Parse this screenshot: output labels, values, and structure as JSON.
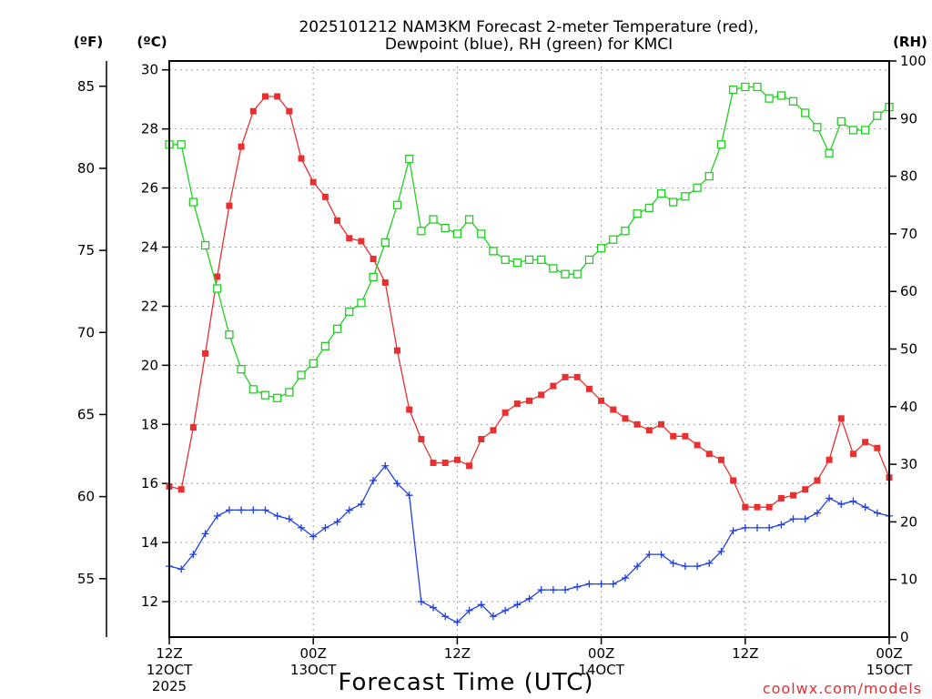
{
  "chart_data": {
    "type": "line",
    "title_line1": "2025101212 NAM3KM Forecast 2-meter Temperature (red),",
    "title_line2": "Dewpoint (blue), RH (green) for KMCI",
    "xlabel": "Forecast Time (UTC)",
    "credit": "coolwx.com/models",
    "units": {
      "fahrenheit": "(ºF)",
      "celsius": "(ºC)",
      "rh": "(RH)"
    },
    "x_range_hours": [
      0,
      60
    ],
    "x_ticks": [
      {
        "hour": 0,
        "line1": "12Z",
        "line2": "12OCT",
        "line3": "2025"
      },
      {
        "hour": 12,
        "line1": "00Z",
        "line2": "13OCT",
        "line3": ""
      },
      {
        "hour": 24,
        "line1": "12Z",
        "line2": "",
        "line3": ""
      },
      {
        "hour": 36,
        "line1": "00Z",
        "line2": "14OCT",
        "line3": ""
      },
      {
        "hour": 48,
        "line1": "12Z",
        "line2": "",
        "line3": ""
      },
      {
        "hour": 60,
        "line1": "00Z",
        "line2": "15OCT",
        "line3": ""
      }
    ],
    "y_left_celsius": {
      "range": [
        10.8,
        30.3
      ],
      "ticks": [
        "12",
        "14",
        "16",
        "18",
        "20",
        "22",
        "24",
        "26",
        "28",
        "30"
      ]
    },
    "y_left_fahrenheit": {
      "ticks": [
        "55",
        "60",
        "65",
        "70",
        "75",
        "80",
        "85"
      ]
    },
    "y_right_rh": {
      "range": [
        0,
        100
      ],
      "ticks": [
        "0",
        "10",
        "20",
        "30",
        "40",
        "50",
        "60",
        "70",
        "80",
        "90",
        "100"
      ]
    },
    "series": [
      {
        "name": "2-meter Temperature",
        "unit": "C",
        "color": "#e83030",
        "marker": "filled-square",
        "values": [
          15.9,
          15.8,
          17.9,
          20.4,
          23.0,
          25.4,
          27.4,
          28.6,
          29.1,
          29.1,
          28.6,
          27.0,
          26.2,
          25.7,
          24.9,
          24.3,
          24.2,
          23.6,
          22.8,
          20.5,
          18.5,
          17.5,
          16.7,
          16.7,
          16.8,
          16.6,
          17.5,
          17.8,
          18.4,
          18.7,
          18.8,
          19.0,
          19.3,
          19.6,
          19.6,
          19.2,
          18.8,
          18.5,
          18.2,
          18.0,
          17.8,
          18.0,
          17.6,
          17.6,
          17.3,
          17.0,
          16.8,
          16.1,
          15.2,
          15.2,
          15.2,
          15.5,
          15.6,
          15.8,
          16.1,
          16.8,
          18.2,
          17.0,
          17.4,
          17.2,
          16.2
        ]
      },
      {
        "name": "Dewpoint",
        "unit": "C",
        "color": "#2040e0",
        "marker": "plus",
        "values": [
          13.2,
          13.1,
          13.6,
          14.3,
          14.9,
          15.1,
          15.1,
          15.1,
          15.1,
          14.9,
          14.8,
          14.5,
          14.2,
          14.5,
          14.7,
          15.1,
          15.3,
          16.1,
          16.6,
          16.0,
          15.6,
          12.0,
          11.8,
          11.5,
          11.3,
          11.7,
          11.9,
          11.5,
          11.7,
          11.9,
          12.1,
          12.4,
          12.4,
          12.4,
          12.5,
          12.6,
          12.6,
          12.6,
          12.8,
          13.2,
          13.6,
          13.6,
          13.3,
          13.2,
          13.2,
          13.3,
          13.7,
          14.4,
          14.5,
          14.5,
          14.5,
          14.6,
          14.8,
          14.8,
          15.0,
          15.5,
          15.3,
          15.4,
          15.2,
          15.0,
          14.9
        ]
      },
      {
        "name": "RH",
        "unit": "%",
        "color": "#20d020",
        "marker": "open-square",
        "values": [
          85.5,
          85.5,
          75.5,
          68.0,
          60.5,
          52.5,
          46.5,
          43.0,
          42.0,
          41.5,
          42.5,
          45.5,
          47.5,
          50.5,
          53.5,
          56.5,
          58.0,
          62.5,
          68.5,
          75.0,
          83.0,
          70.5,
          72.5,
          71.0,
          70.0,
          72.5,
          70.0,
          67.0,
          65.5,
          65.0,
          65.5,
          65.5,
          64.0,
          63.0,
          63.0,
          65.5,
          67.5,
          69.0,
          70.5,
          73.5,
          74.5,
          77.0,
          75.5,
          76.5,
          78.0,
          80.0,
          85.5,
          95.0,
          95.5,
          95.5,
          93.5,
          94.0,
          93.0,
          91.0,
          88.5,
          84.0,
          89.5,
          88.0,
          88.0,
          90.5,
          92.0
        ]
      }
    ]
  }
}
